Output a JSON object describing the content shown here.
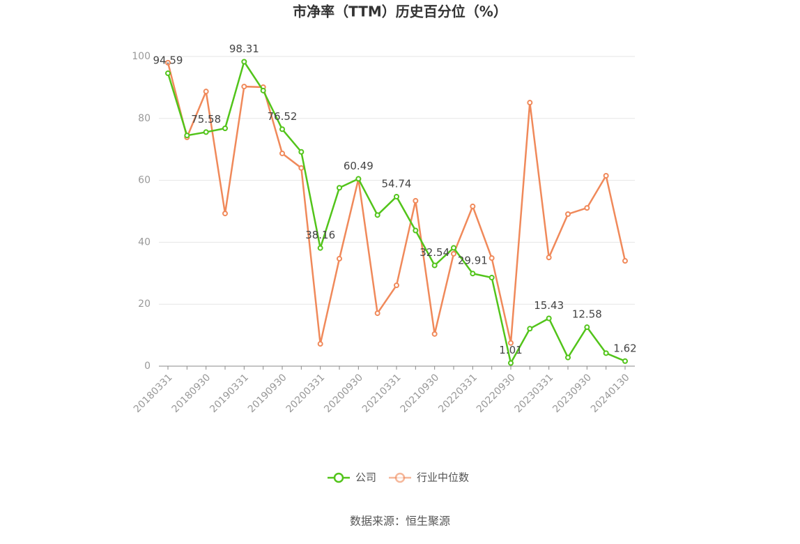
{
  "chart_data": {
    "type": "line",
    "title": "市净率（TTM）历史百分位（%）",
    "categories": [
      "20180331",
      null,
      "20180930",
      null,
      "20190331",
      null,
      "20190930",
      null,
      "20200331",
      null,
      "20200930",
      null,
      "20210331",
      null,
      "20210930",
      null,
      "20220331",
      null,
      "20220930",
      null,
      "20230331",
      null,
      "20230930",
      null,
      "20240130"
    ],
    "series": [
      {
        "name": "公司",
        "color": "#52c41a",
        "values": [
          94.59,
          74.5,
          75.58,
          76.8,
          98.31,
          89.0,
          76.52,
          69.2,
          38.16,
          57.6,
          60.49,
          48.8,
          54.74,
          43.8,
          32.54,
          38.2,
          29.91,
          28.6,
          1.01,
          12.1,
          15.43,
          2.8,
          12.58,
          4.2,
          1.62
        ],
        "value_labels": [
          "94.59",
          null,
          "75.58",
          null,
          "98.31",
          null,
          "76.52",
          null,
          "38.16",
          null,
          "60.49",
          null,
          "54.74",
          null,
          "32.54",
          null,
          "29.91",
          null,
          "1.01",
          null,
          "15.43",
          null,
          "12.58",
          null,
          "1.62"
        ]
      },
      {
        "name": "行业中位数",
        "color": "#f0895a",
        "values": [
          98.0,
          73.9,
          88.7,
          49.3,
          90.3,
          90.1,
          68.7,
          64.0,
          7.2,
          34.7,
          60.4,
          17.1,
          26.1,
          53.4,
          10.4,
          36.3,
          51.6,
          34.9,
          7.5,
          85.1,
          35.1,
          49.1,
          51.1,
          61.5,
          34.0
        ]
      }
    ],
    "ylim": [
      0,
      100
    ],
    "yticks": [
      0,
      20,
      40,
      60,
      80,
      100
    ],
    "grid": true,
    "source": "数据来源：恒生聚源"
  }
}
